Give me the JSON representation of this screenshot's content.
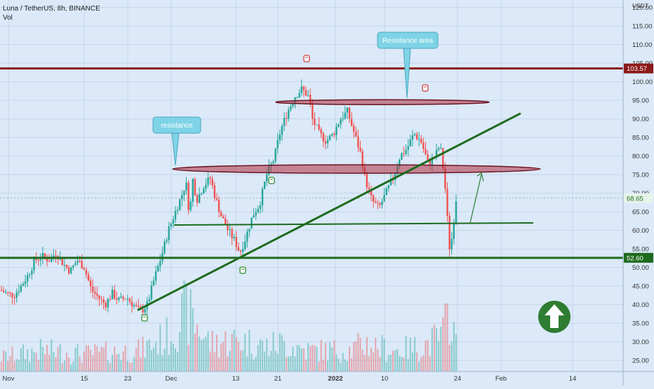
{
  "header": {
    "symbol_line": "Luna / TetherUS, 8h, BINANCE",
    "volume_label": "Vol"
  },
  "chart_data": {
    "type": "candlestick",
    "symbol": "Luna / TetherUS",
    "interval": "8h",
    "exchange": "BINANCE",
    "currency": "USDT",
    "ylim": [
      22,
      122
    ],
    "y_ticks": [
      25,
      30,
      35,
      40,
      45,
      50,
      55,
      60,
      65,
      70,
      75,
      80,
      85,
      90,
      95,
      100,
      105,
      110,
      115,
      120
    ],
    "x_tick_labels": [
      "Nov",
      "15",
      "23",
      "Dec",
      "13",
      "21",
      "2022",
      "10",
      "24",
      "Feb",
      "14"
    ],
    "price_labels": {
      "resistance_line": "103.57",
      "support_line": "52.60",
      "last_price": "68.65"
    },
    "price_path": [
      [
        0,
        44
      ],
      [
        10,
        43
      ],
      [
        20,
        42.5
      ],
      [
        30,
        45
      ],
      [
        40,
        48
      ],
      [
        50,
        52
      ],
      [
        60,
        53
      ],
      [
        70,
        52
      ],
      [
        80,
        54
      ],
      [
        90,
        51
      ],
      [
        100,
        49
      ],
      [
        110,
        52
      ],
      [
        120,
        50
      ],
      [
        130,
        44
      ],
      [
        140,
        42
      ],
      [
        150,
        40
      ],
      [
        160,
        43
      ],
      [
        170,
        41
      ],
      [
        180,
        42
      ],
      [
        190,
        40
      ],
      [
        200,
        38
      ],
      [
        210,
        40
      ],
      [
        220,
        47
      ],
      [
        230,
        53
      ],
      [
        240,
        60
      ],
      [
        250,
        65
      ],
      [
        260,
        70
      ],
      [
        265,
        73
      ],
      [
        270,
        64
      ],
      [
        275,
        74
      ],
      [
        280,
        68
      ],
      [
        290,
        72
      ],
      [
        300,
        74
      ],
      [
        305,
        70
      ],
      [
        315,
        64
      ],
      [
        325,
        60
      ],
      [
        335,
        57
      ],
      [
        342,
        54
      ],
      [
        350,
        58
      ],
      [
        360,
        64
      ],
      [
        370,
        67
      ],
      [
        380,
        75
      ],
      [
        390,
        79
      ],
      [
        400,
        87
      ],
      [
        410,
        92
      ],
      [
        420,
        96
      ],
      [
        430,
        98
      ],
      [
        440,
        96
      ],
      [
        445,
        90
      ],
      [
        455,
        86
      ],
      [
        465,
        84
      ],
      [
        475,
        86
      ],
      [
        485,
        90
      ],
      [
        495,
        92
      ],
      [
        505,
        86
      ],
      [
        515,
        80
      ],
      [
        520,
        74
      ],
      [
        530,
        68
      ],
      [
        540,
        66
      ],
      [
        550,
        70
      ],
      [
        560,
        74
      ],
      [
        570,
        80
      ],
      [
        580,
        82
      ],
      [
        590,
        86
      ],
      [
        600,
        84
      ],
      [
        610,
        78
      ],
      [
        620,
        80
      ],
      [
        627,
        83
      ],
      [
        632,
        76
      ],
      [
        636,
        68
      ],
      [
        640,
        55
      ],
      [
        644,
        58
      ],
      [
        650,
        68.65
      ]
    ],
    "volume_path": [
      [
        0,
        4
      ],
      [
        60,
        6
      ],
      [
        120,
        5
      ],
      [
        200,
        6
      ],
      [
        240,
        10
      ],
      [
        265,
        17
      ],
      [
        300,
        8
      ],
      [
        340,
        9
      ],
      [
        380,
        7
      ],
      [
        400,
        8
      ],
      [
        440,
        6
      ],
      [
        500,
        6
      ],
      [
        520,
        8
      ],
      [
        560,
        6
      ],
      [
        600,
        7
      ],
      [
        630,
        10
      ],
      [
        638,
        15
      ],
      [
        642,
        20
      ],
      [
        650,
        7
      ]
    ],
    "annotations": [
      {
        "type": "callout",
        "text": "Resistance area"
      },
      {
        "type": "callout",
        "text": "resistance"
      },
      {
        "type": "horizontal_line",
        "price": 103.57,
        "color": "#8b1a1a"
      },
      {
        "type": "horizontal_line",
        "price": 52.6,
        "color": "#1e6b1e"
      },
      {
        "type": "ellipse_zone",
        "price": 94.5,
        "color": "#b03040"
      },
      {
        "type": "ellipse_zone",
        "price": 76.5,
        "color": "#b03040"
      },
      {
        "type": "support_line",
        "price": 62,
        "color": "#1e6b1e"
      },
      {
        "type": "trendline",
        "from_price": 38.5,
        "to_price": 91.5,
        "color": "#1e6b1e"
      },
      {
        "type": "arrow_up",
        "color": "#2e7d32"
      }
    ],
    "colors": {
      "background": "#dbe9f9",
      "up_candle": "#26a69a",
      "down_candle": "#ef5350",
      "resistance_line": "#8b1a1a",
      "support_line": "#1e6b1e",
      "callout": "#7fd3e6"
    }
  }
}
